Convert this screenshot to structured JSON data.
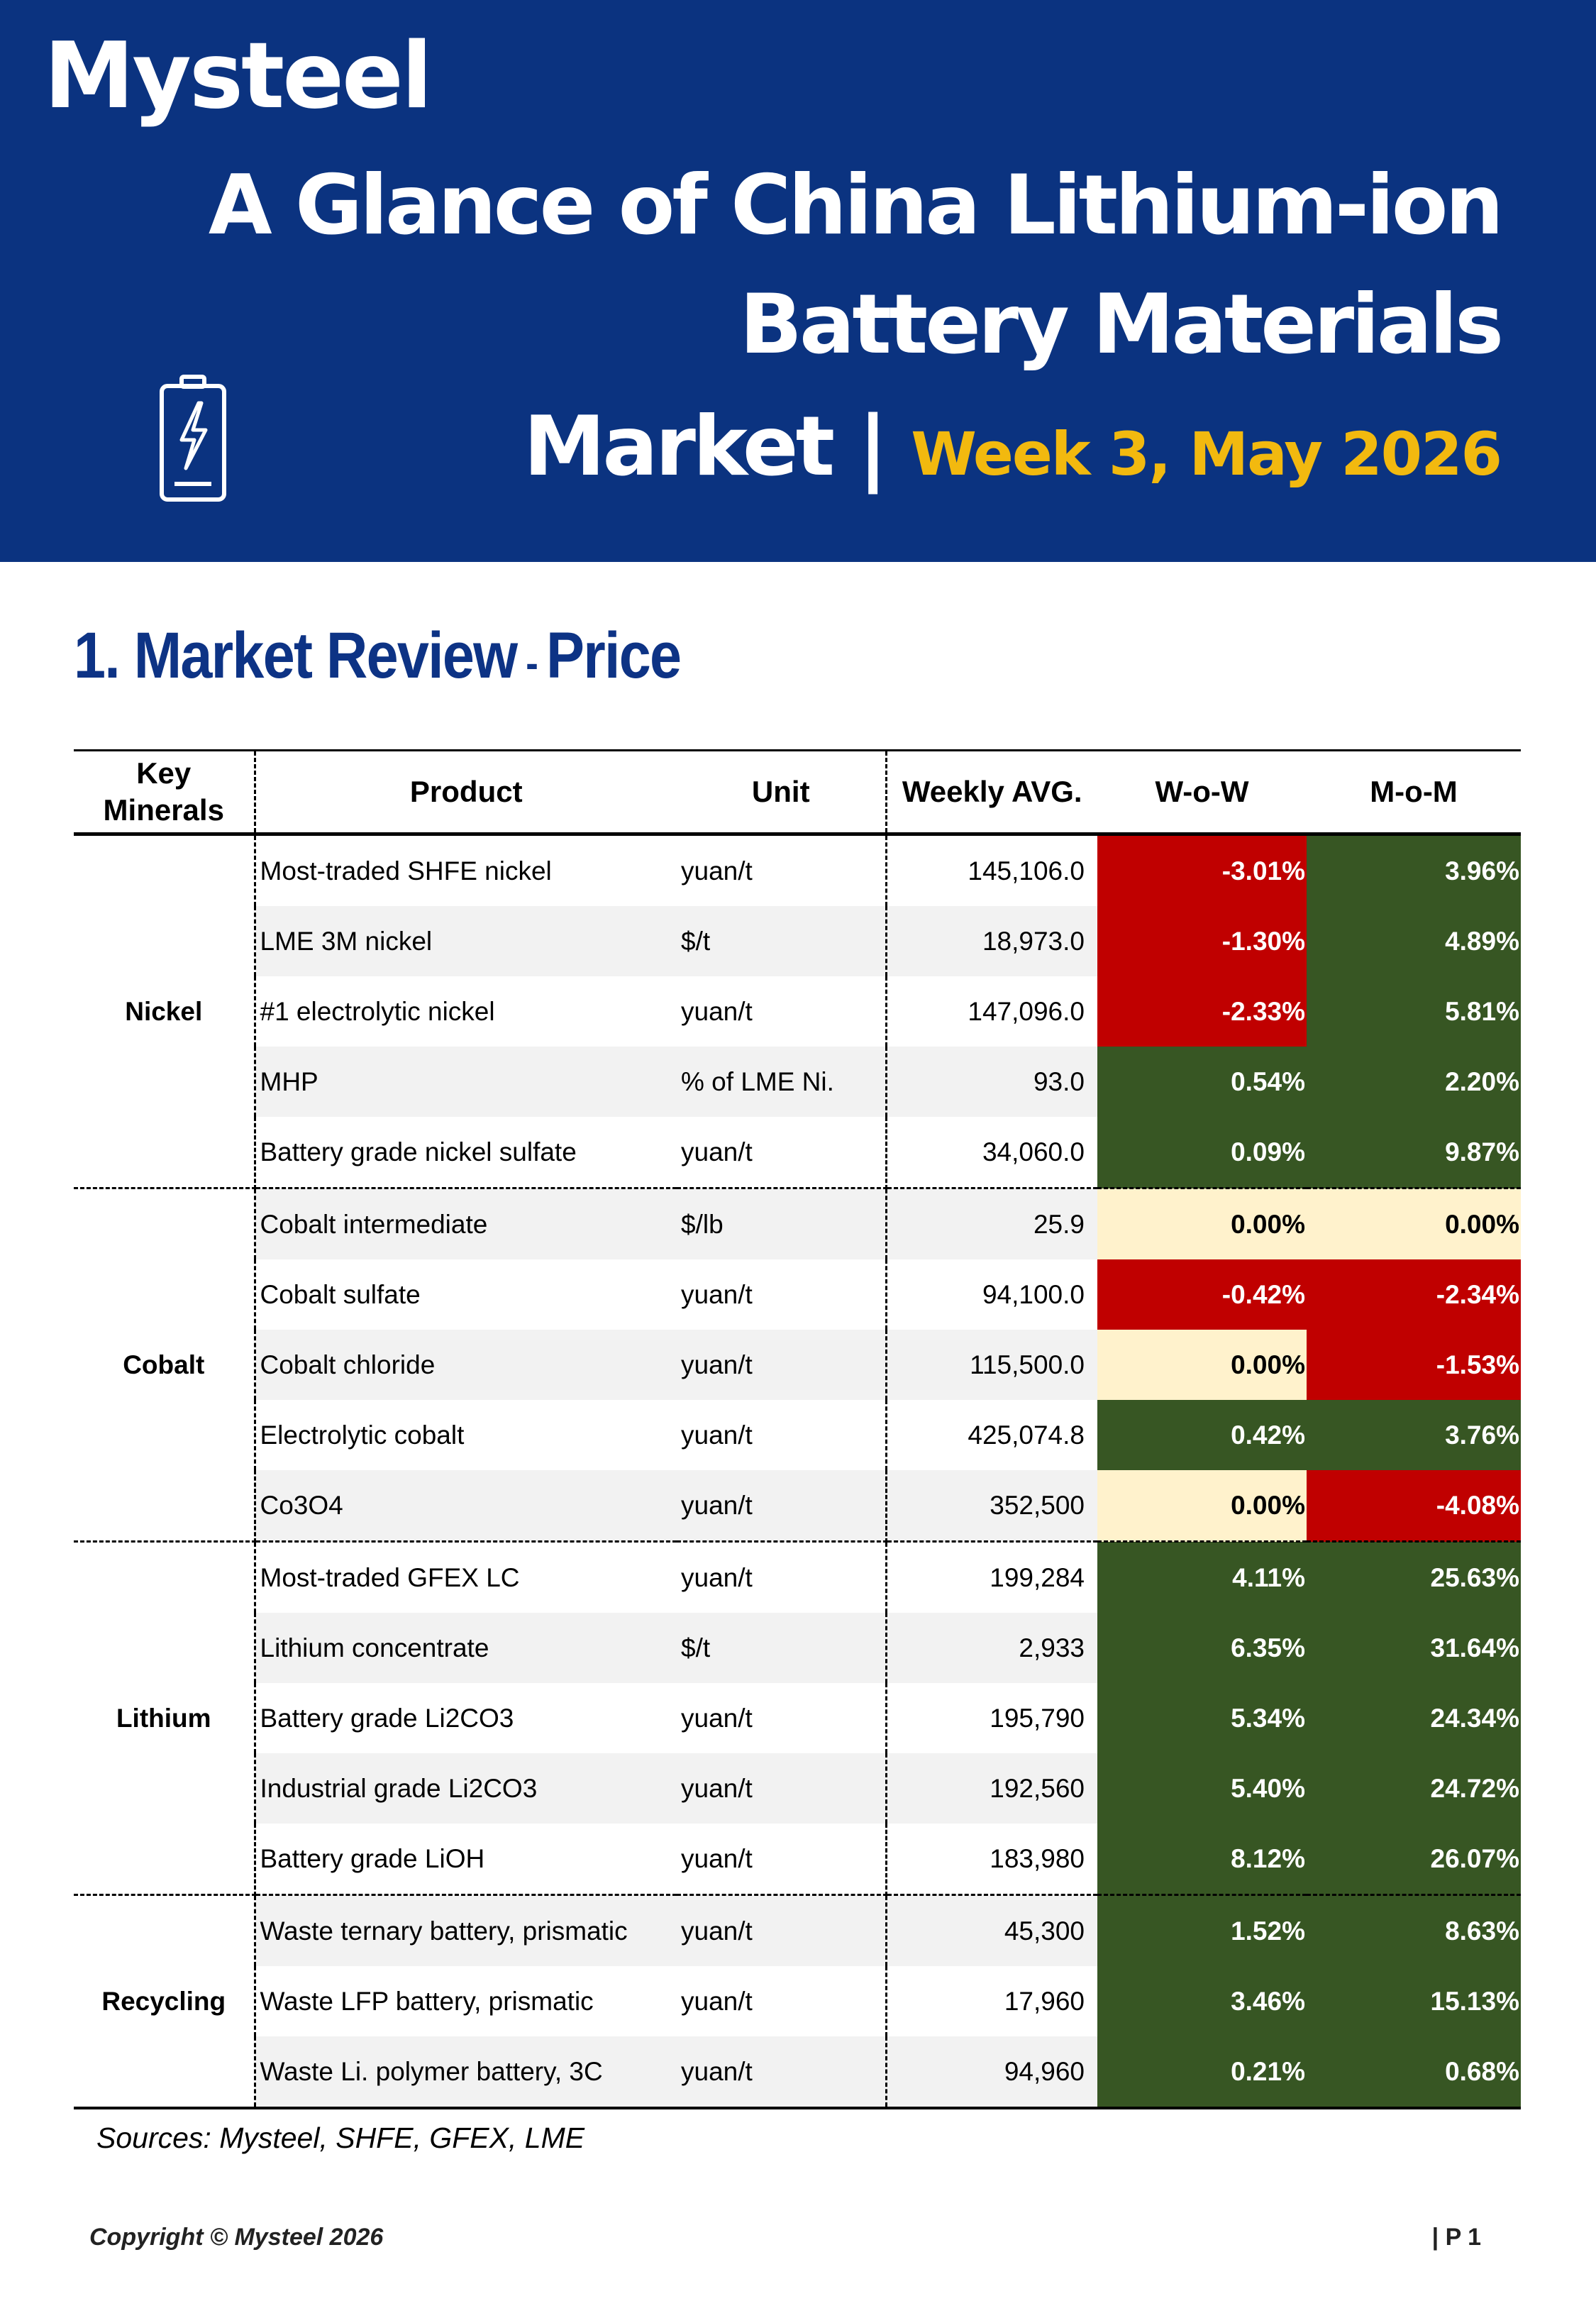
{
  "header": {
    "logo": "Mysteel",
    "title_line1": "A Glance of China Lithium-ion",
    "title_line2": "Battery Materials",
    "title_line3": "Market |",
    "week": "Week 3, May 2026",
    "icon": "battery-charging-icon",
    "background_color": "#0b3380",
    "accent_color": "#f2b90f"
  },
  "section": {
    "title": "1. Market Review",
    "dash": " - ",
    "subtitle": "Price"
  },
  "table": {
    "headers": [
      "Key Minerals",
      "Product",
      "Unit",
      "Weekly AVG.",
      "W-o-W",
      "M-o-M"
    ],
    "colors": {
      "negative": "#c00000",
      "positive": "#375623",
      "unchanged": "#fff2cc"
    },
    "groups": [
      {
        "mineral": "Nickel",
        "rows": [
          {
            "product": "Most-traded SHFE nickel",
            "unit": "yuan/t",
            "avg": "145,106.0",
            "wow": "-3.01%",
            "mom": "3.96%"
          },
          {
            "product": "LME 3M nickel",
            "unit": "$/t",
            "avg": "18,973.0",
            "wow": "-1.30%",
            "mom": "4.89%"
          },
          {
            "product": "#1 electrolytic nickel",
            "unit": "yuan/t",
            "avg": "147,096.0",
            "wow": "-2.33%",
            "mom": "5.81%"
          },
          {
            "product": "MHP",
            "unit": "% of LME Ni.",
            "avg": "93.0",
            "wow": "0.54%",
            "mom": "2.20%"
          },
          {
            "product": "Battery grade nickel sulfate",
            "unit": "yuan/t",
            "avg": "34,060.0",
            "wow": "0.09%",
            "mom": "9.87%"
          }
        ]
      },
      {
        "mineral": "Cobalt",
        "rows": [
          {
            "product": "Cobalt intermediate",
            "unit": "$/lb",
            "avg": "25.9",
            "wow": "0.00%",
            "mom": "0.00%"
          },
          {
            "product": "Cobalt sulfate",
            "unit": "yuan/t",
            "avg": "94,100.0",
            "wow": "-0.42%",
            "mom": "-2.34%"
          },
          {
            "product": "Cobalt chloride",
            "unit": "yuan/t",
            "avg": "115,500.0",
            "wow": "0.00%",
            "mom": "-1.53%"
          },
          {
            "product": "Electrolytic cobalt",
            "unit": "yuan/t",
            "avg": "425,074.8",
            "wow": "0.42%",
            "mom": "3.76%"
          },
          {
            "product": "Co3O4",
            "unit": "yuan/t",
            "avg": "352,500",
            "wow": "0.00%",
            "mom": "-4.08%"
          }
        ]
      },
      {
        "mineral": "Lithium",
        "rows": [
          {
            "product": "Most-traded GFEX LC",
            "unit": "yuan/t",
            "avg": "199,284",
            "wow": "4.11%",
            "mom": "25.63%"
          },
          {
            "product": "Lithium concentrate",
            "unit": "$/t",
            "avg": "2,933",
            "wow": "6.35%",
            "mom": "31.64%"
          },
          {
            "product": "Battery grade Li2CO3",
            "unit": "yuan/t",
            "avg": "195,790",
            "wow": "5.34%",
            "mom": "24.34%"
          },
          {
            "product": "Industrial grade Li2CO3",
            "unit": "yuan/t",
            "avg": "192,560",
            "wow": "5.40%",
            "mom": "24.72%"
          },
          {
            "product": "Battery grade LiOH",
            "unit": "yuan/t",
            "avg": "183,980",
            "wow": "8.12%",
            "mom": "26.07%"
          }
        ]
      },
      {
        "mineral": "Recycling",
        "rows": [
          {
            "product": "Waste ternary battery, prismatic",
            "unit": "yuan/t",
            "avg": "45,300",
            "wow": "1.52%",
            "mom": "8.63%"
          },
          {
            "product": "Waste LFP battery, prismatic",
            "unit": "yuan/t",
            "avg": "17,960",
            "wow": "3.46%",
            "mom": "15.13%"
          },
          {
            "product": "Waste Li. polymer battery, 3C",
            "unit": "yuan/t",
            "avg": "94,960",
            "wow": "0.21%",
            "mom": "0.68%"
          }
        ]
      }
    ]
  },
  "sources": "Sources: Mysteel, SHFE, GFEX, LME",
  "footer": {
    "copyright": "Copyright © Mysteel 2026",
    "page": "| P 1"
  }
}
